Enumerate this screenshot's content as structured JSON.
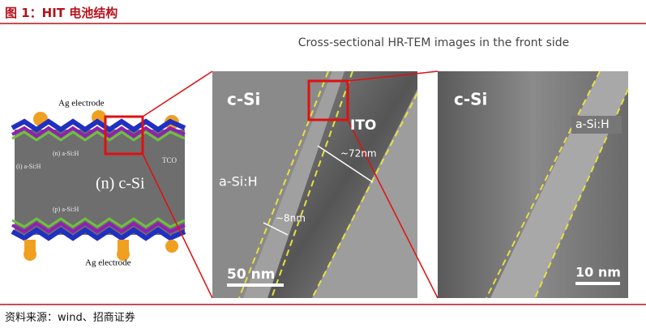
{
  "header": {
    "title": "图 1：HIT 电池结构"
  },
  "figure": {
    "caption": "Cross-sectional HR-TEM images in the front side",
    "diagram": {
      "top_electrode": "Ag electrode",
      "n_layer": "(n) a-Si:H",
      "i_layer": "(i) a-Si:H",
      "tco": "TCO",
      "bulk": "(n) c-Si",
      "p_layer": "(p) a-Si:H",
      "bottom_electrode": "Ag electrode"
    },
    "panel_left": {
      "substrate": "c-Si",
      "ito": "ITO",
      "ito_thickness": "~72nm",
      "asi": "a-Si:H",
      "asi_thickness": "~8nm",
      "scale": "50 nm"
    },
    "panel_right": {
      "substrate": "c-Si",
      "asi": "a-Si:H",
      "scale": "10 nm"
    }
  },
  "source": "资料来源：wind、招商证券"
}
